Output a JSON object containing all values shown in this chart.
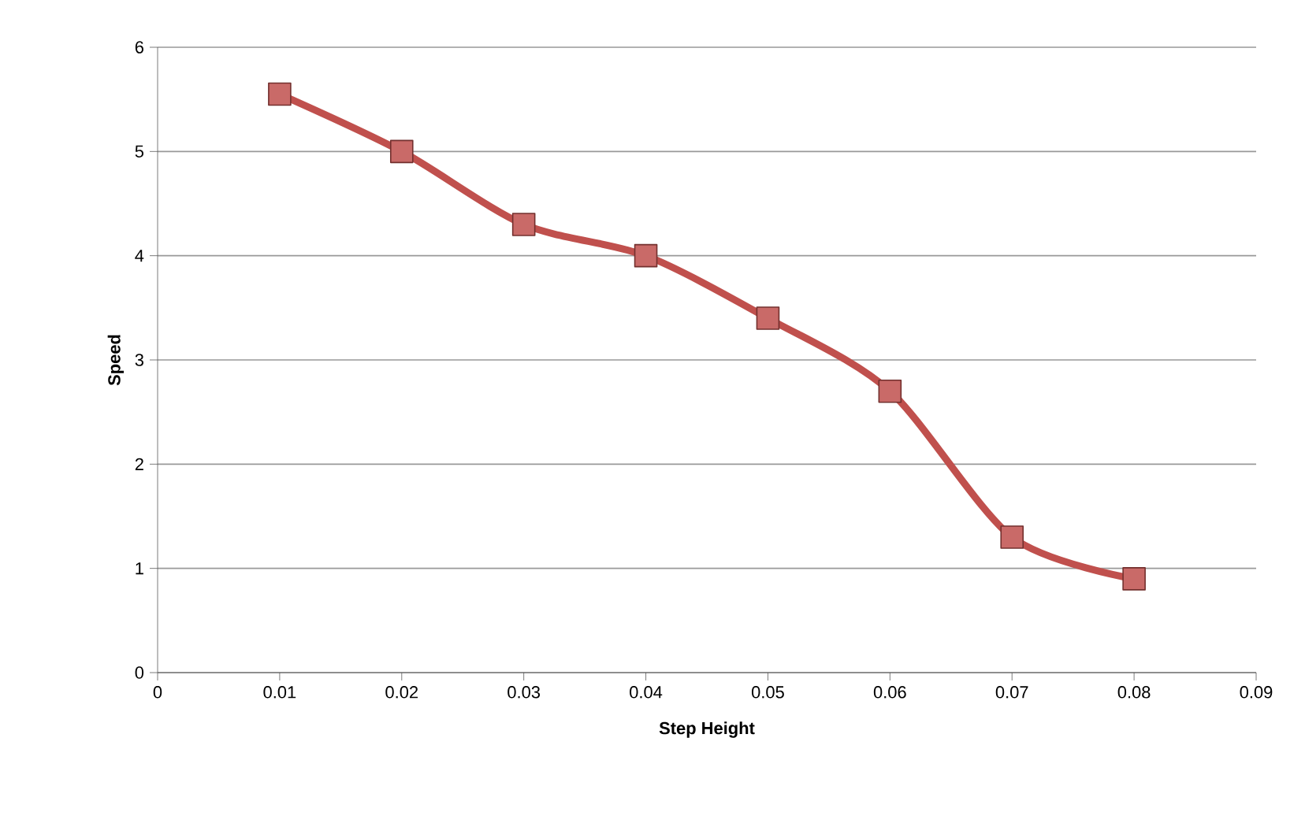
{
  "chart_data": {
    "type": "line",
    "xlabel": "Step Height",
    "ylabel": "Speed",
    "x": [
      0.01,
      0.02,
      0.03,
      0.04,
      0.05,
      0.06,
      0.07,
      0.08
    ],
    "series": [
      {
        "color": "#c0504d",
        "values": [
          5.55,
          5.0,
          4.3,
          4.0,
          3.4,
          2.7,
          1.3,
          0.9
        ]
      }
    ],
    "xlim": [
      0,
      0.09
    ],
    "xticks": [
      0,
      0.01,
      0.02,
      0.03,
      0.04,
      0.05,
      0.06,
      0.07,
      0.08,
      0.09
    ],
    "ylim": [
      0,
      6
    ],
    "yticks": [
      0,
      1,
      2,
      3,
      4,
      5,
      6
    ],
    "grid": "y",
    "marker": "square",
    "line_style": "solid"
  }
}
